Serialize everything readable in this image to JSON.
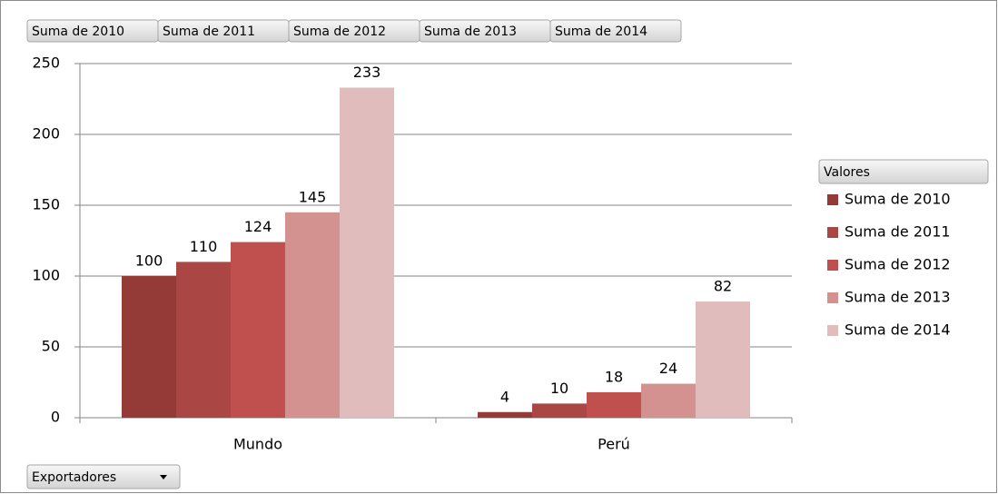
{
  "chart_data": {
    "type": "bar",
    "categories": [
      "Mundo",
      "Perú"
    ],
    "series": [
      {
        "name": "Suma de 2010",
        "color": "#943a37",
        "values": [
          100,
          4
        ]
      },
      {
        "name": "Suma de 2011",
        "color": "#aa4643",
        "values": [
          110,
          10
        ]
      },
      {
        "name": "Suma de 2012",
        "color": "#c0504d",
        "values": [
          124,
          18
        ]
      },
      {
        "name": "Suma de 2013",
        "color": "#d39290",
        "values": [
          145,
          24
        ]
      },
      {
        "name": "Suma de 2014",
        "color": "#e1bcbc",
        "values": [
          233,
          82
        ]
      }
    ],
    "ylim": [
      0,
      250
    ],
    "yticks": [
      0,
      50,
      100,
      150,
      200,
      250
    ],
    "grid": true,
    "legend_title": "Valores",
    "legend": "right",
    "x_field": "Exportadores"
  }
}
